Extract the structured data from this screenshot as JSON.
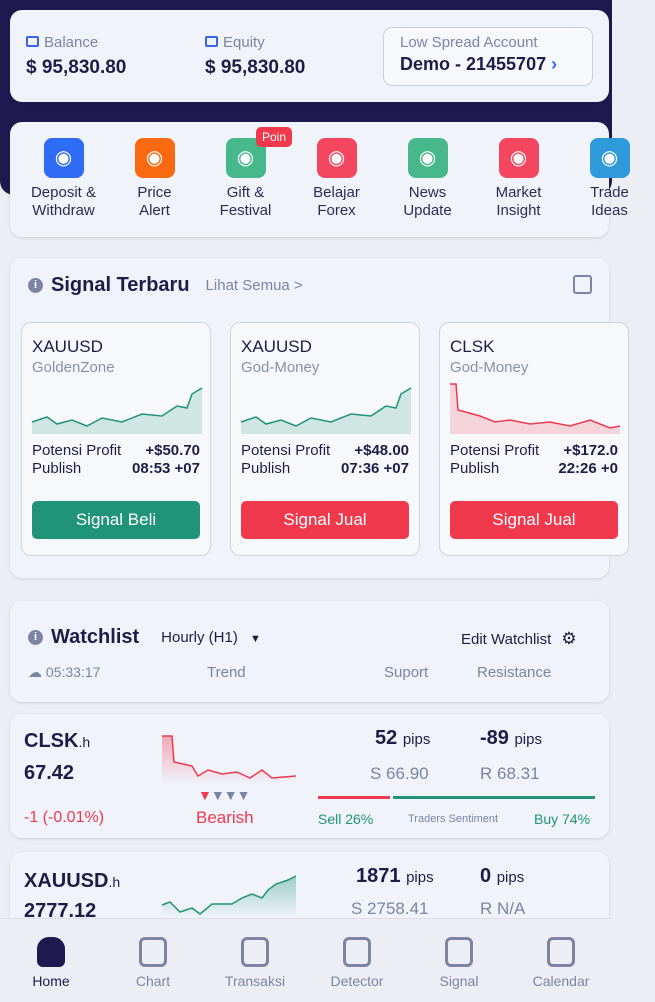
{
  "account": {
    "balance_label": "Balance",
    "balance": "$ 95,830.80",
    "equity_label": "Equity",
    "equity": "$ 95,830.80",
    "type": "Low Spread Account",
    "id": "Demo - 21455707"
  },
  "menu": [
    {
      "l1": "Deposit &",
      "l2": "Withdraw",
      "icon": "money-icon",
      "color": "#2f6cf6"
    },
    {
      "l1": "Price",
      "l2": "Alert",
      "icon": "alarm-icon",
      "color": "#f96a10"
    },
    {
      "l1": "Gift &",
      "l2": "Festival",
      "icon": "gift-smile-icon",
      "color": "#47b78c",
      "badge": "Poin"
    },
    {
      "l1": "Belajar",
      "l2": "Forex",
      "icon": "presentation-icon",
      "color": "#f4465e"
    },
    {
      "l1": "News",
      "l2": "Update",
      "icon": "globe-icon",
      "color": "#47b78c"
    },
    {
      "l1": "Market",
      "l2": "Insight",
      "icon": "bar-chart-icon",
      "color": "#f4465e"
    },
    {
      "l1": "Trade",
      "l2": "Ideas",
      "icon": "chart-icon",
      "color": "#2f9ad9"
    }
  ],
  "signals": {
    "title": "Signal Terbaru",
    "see_all": "Lihat Semua >",
    "profit_label": "Potensi Profit",
    "publish_label": "Publish",
    "cards": [
      {
        "symbol": "XAUUSD",
        "source": "GoldenZone",
        "profit": "+$50.70",
        "time": "08:53 +07",
        "action": "Signal Beli",
        "trend": "up"
      },
      {
        "symbol": "XAUUSD",
        "source": "God-Money",
        "profit": "+$48.00",
        "time": "07:36 +07",
        "action": "Signal Jual",
        "trend": "up"
      },
      {
        "symbol": "CLSK",
        "source": "God-Money",
        "profit": "+$172.0",
        "time": "22:26 +0",
        "action": "Signal Jual",
        "trend": "down"
      }
    ]
  },
  "watchlist": {
    "title": "Watchlist",
    "timeframe": "Hourly (H1)",
    "edit": "Edit Watchlist",
    "clock": "05:33:17",
    "cols": [
      "Trend",
      "Suport",
      "Resistance"
    ],
    "items": [
      {
        "symbol": "CLSK",
        "suffix": ".h",
        "price": "67.42",
        "change": "-1 (-0.01%)",
        "trend": "Bearish",
        "sup_pips": "52",
        "res_pips": "-89",
        "pips": "pips",
        "support": "S 66.90",
        "resistance": "R 68.31",
        "sell": "Sell 26%",
        "buy": "Buy 74%",
        "sell_pct": 26,
        "sentiment": "Traders Sentiment"
      },
      {
        "symbol": "XAUUSD",
        "suffix": ".h",
        "price": "2777.12",
        "sup_pips": "1871",
        "res_pips": "0",
        "pips": "pips",
        "support": "S 2758.41",
        "resistance": "R N/A"
      }
    ]
  },
  "nav": [
    {
      "label": "Home",
      "active": true
    },
    {
      "label": "Chart"
    },
    {
      "label": "Transaksi"
    },
    {
      "label": "Detector"
    },
    {
      "label": "Signal"
    },
    {
      "label": "Calendar"
    }
  ]
}
